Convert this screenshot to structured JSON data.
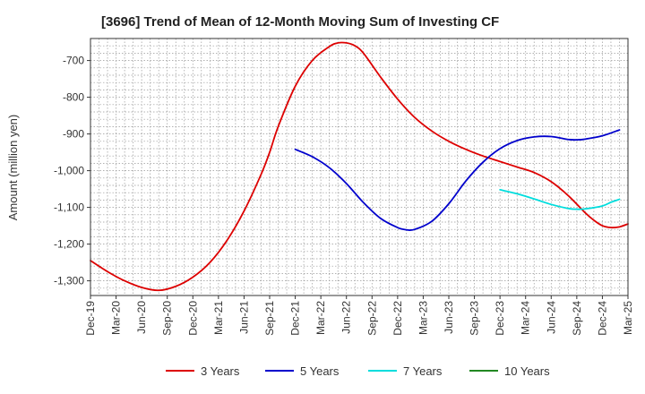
{
  "chart_data": {
    "type": "line",
    "title": "[3696]  Trend of Mean of 12-Month Moving Sum of Investing CF",
    "xlabel": "",
    "ylabel": "Amount (million yen)",
    "ylim": [
      -1340,
      -640
    ],
    "yticks": [
      -700,
      -800,
      -900,
      -1000,
      -1100,
      -1200,
      -1300
    ],
    "ytick_labels": [
      "-700",
      "-800",
      "-900",
      "-1,000",
      "-1,100",
      "-1,200",
      "-1,300"
    ],
    "xtick_labels": [
      "Dec-19",
      "Mar-20",
      "Jun-20",
      "Sep-20",
      "Dec-20",
      "Mar-21",
      "Jun-21",
      "Sep-21",
      "Dec-21",
      "Mar-22",
      "Jun-22",
      "Sep-22",
      "Dec-22",
      "Mar-23",
      "Jun-23",
      "Sep-23",
      "Dec-23",
      "Mar-24",
      "Jun-24",
      "Sep-24",
      "Dec-24",
      "Mar-25"
    ],
    "x_range_months": [
      0,
      63
    ],
    "grid": true,
    "legend_position": "bottom",
    "series": [
      {
        "name": "3 Years",
        "color": "#dd0000",
        "points": [
          [
            0,
            -1245
          ],
          [
            2,
            -1275
          ],
          [
            4,
            -1300
          ],
          [
            6,
            -1318
          ],
          [
            8,
            -1326
          ],
          [
            10,
            -1315
          ],
          [
            12,
            -1290
          ],
          [
            14,
            -1250
          ],
          [
            16,
            -1190
          ],
          [
            18,
            -1110
          ],
          [
            20,
            -1010
          ],
          [
            21,
            -950
          ],
          [
            22,
            -880
          ],
          [
            24,
            -770
          ],
          [
            26,
            -700
          ],
          [
            28,
            -662
          ],
          [
            29,
            -652
          ],
          [
            30,
            -652
          ],
          [
            31,
            -660
          ],
          [
            32,
            -680
          ],
          [
            34,
            -745
          ],
          [
            36,
            -805
          ],
          [
            38,
            -855
          ],
          [
            40,
            -892
          ],
          [
            42,
            -920
          ],
          [
            44,
            -942
          ],
          [
            46,
            -960
          ],
          [
            48,
            -975
          ],
          [
            50,
            -990
          ],
          [
            52,
            -1005
          ],
          [
            54,
            -1030
          ],
          [
            56,
            -1068
          ],
          [
            58,
            -1115
          ],
          [
            59,
            -1135
          ],
          [
            60,
            -1150
          ],
          [
            61,
            -1155
          ],
          [
            62,
            -1153
          ],
          [
            63,
            -1145
          ]
        ]
      },
      {
        "name": "5 Years",
        "color": "#0000cc",
        "points": [
          [
            24,
            -942
          ],
          [
            26,
            -962
          ],
          [
            28,
            -992
          ],
          [
            30,
            -1035
          ],
          [
            32,
            -1087
          ],
          [
            34,
            -1130
          ],
          [
            36,
            -1155
          ],
          [
            37,
            -1161
          ],
          [
            38,
            -1160
          ],
          [
            40,
            -1138
          ],
          [
            42,
            -1090
          ],
          [
            44,
            -1028
          ],
          [
            46,
            -977
          ],
          [
            48,
            -940
          ],
          [
            50,
            -918
          ],
          [
            52,
            -908
          ],
          [
            54,
            -907
          ],
          [
            56,
            -915
          ],
          [
            57,
            -916
          ],
          [
            58,
            -914
          ],
          [
            60,
            -905
          ],
          [
            62,
            -889
          ]
        ]
      },
      {
        "name": "7 Years",
        "color": "#00dddd",
        "points": [
          [
            48,
            -1052
          ],
          [
            50,
            -1063
          ],
          [
            52,
            -1077
          ],
          [
            54,
            -1092
          ],
          [
            56,
            -1103
          ],
          [
            57,
            -1105
          ],
          [
            58,
            -1104
          ],
          [
            60,
            -1096
          ],
          [
            61,
            -1086
          ],
          [
            62,
            -1078
          ]
        ]
      },
      {
        "name": "10 Years",
        "color": "#228822",
        "points": []
      }
    ]
  }
}
